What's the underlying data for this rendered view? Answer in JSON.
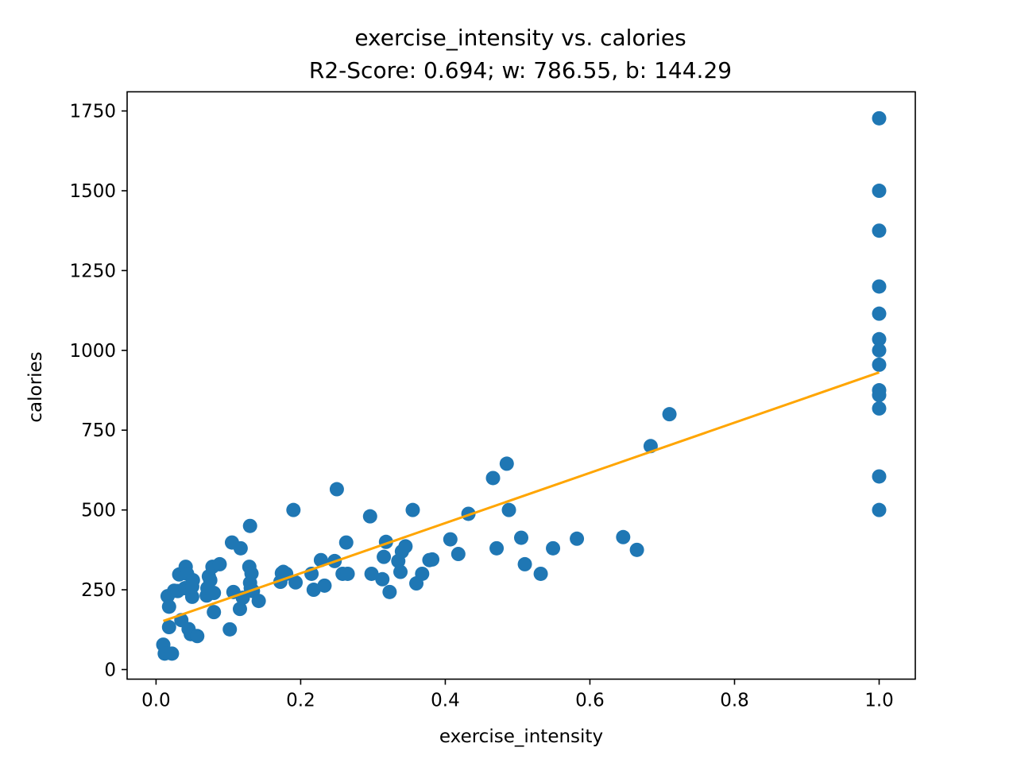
{
  "chart_data": {
    "type": "scatter",
    "title": "exercise_intensity vs. calories",
    "subtitle": "R2-Score: 0.694; w: 786.55, b: 144.29",
    "xlabel": "exercise_intensity",
    "ylabel": "calories",
    "xlim": [
      -0.04,
      1.05
    ],
    "ylim": [
      -30,
      1810
    ],
    "xticks": [
      0.0,
      0.2,
      0.4,
      0.6,
      0.8,
      1.0
    ],
    "xtick_labels": [
      "0.0",
      "0.2",
      "0.4",
      "0.6",
      "0.8",
      "1.0"
    ],
    "yticks": [
      0,
      250,
      500,
      750,
      1000,
      1250,
      1500,
      1750
    ],
    "ytick_labels": [
      "0",
      "250",
      "500",
      "750",
      "1000",
      "1250",
      "1500",
      "1750"
    ],
    "grid": false,
    "legend": "none",
    "colors": {
      "points": "#1f77b4",
      "fit_line": "#ffa500"
    },
    "series": [
      {
        "type": "scatter",
        "points": [
          [
            0.01,
            78
          ],
          [
            0.012,
            50
          ],
          [
            0.016,
            230
          ],
          [
            0.018,
            197
          ],
          [
            0.018,
            133
          ],
          [
            0.022,
            50
          ],
          [
            0.025,
            247
          ],
          [
            0.03,
            246
          ],
          [
            0.032,
            298
          ],
          [
            0.035,
            155
          ],
          [
            0.04,
            255
          ],
          [
            0.041,
            322
          ],
          [
            0.043,
            300
          ],
          [
            0.045,
            127
          ],
          [
            0.048,
            111
          ],
          [
            0.05,
            228
          ],
          [
            0.05,
            260
          ],
          [
            0.051,
            280
          ],
          [
            0.057,
            105
          ],
          [
            0.07,
            232
          ],
          [
            0.071,
            255
          ],
          [
            0.073,
            292
          ],
          [
            0.075,
            280
          ],
          [
            0.078,
            322
          ],
          [
            0.08,
            240
          ],
          [
            0.08,
            180
          ],
          [
            0.088,
            330
          ],
          [
            0.102,
            126
          ],
          [
            0.105,
            398
          ],
          [
            0.107,
            243
          ],
          [
            0.116,
            190
          ],
          [
            0.117,
            380
          ],
          [
            0.12,
            225
          ],
          [
            0.129,
            322
          ],
          [
            0.13,
            450
          ],
          [
            0.13,
            272
          ],
          [
            0.131,
            255
          ],
          [
            0.132,
            301
          ],
          [
            0.134,
            246
          ],
          [
            0.142,
            215
          ],
          [
            0.172,
            275
          ],
          [
            0.174,
            302
          ],
          [
            0.176,
            306
          ],
          [
            0.18,
            300
          ],
          [
            0.19,
            500
          ],
          [
            0.193,
            273
          ],
          [
            0.215,
            300
          ],
          [
            0.218,
            250
          ],
          [
            0.228,
            343
          ],
          [
            0.233,
            263
          ],
          [
            0.247,
            340
          ],
          [
            0.25,
            565
          ],
          [
            0.258,
            300
          ],
          [
            0.263,
            398
          ],
          [
            0.265,
            300
          ],
          [
            0.296,
            480
          ],
          [
            0.298,
            300
          ],
          [
            0.313,
            283
          ],
          [
            0.315,
            353
          ],
          [
            0.318,
            400
          ],
          [
            0.323,
            243
          ],
          [
            0.335,
            340
          ],
          [
            0.338,
            306
          ],
          [
            0.34,
            370
          ],
          [
            0.345,
            386
          ],
          [
            0.355,
            500
          ],
          [
            0.36,
            270
          ],
          [
            0.368,
            300
          ],
          [
            0.378,
            343
          ],
          [
            0.382,
            345
          ],
          [
            0.407,
            408
          ],
          [
            0.418,
            362
          ],
          [
            0.432,
            488
          ],
          [
            0.466,
            600
          ],
          [
            0.471,
            380
          ],
          [
            0.485,
            645
          ],
          [
            0.488,
            500
          ],
          [
            0.505,
            413
          ],
          [
            0.51,
            330
          ],
          [
            0.532,
            300
          ],
          [
            0.549,
            380
          ],
          [
            0.582,
            410
          ],
          [
            0.646,
            415
          ],
          [
            0.665,
            375
          ],
          [
            0.684,
            700
          ],
          [
            0.71,
            800
          ],
          [
            1.0,
            1727
          ],
          [
            1.0,
            1500
          ],
          [
            1.0,
            1375
          ],
          [
            1.0,
            1200
          ],
          [
            1.0,
            1115
          ],
          [
            1.0,
            1035
          ],
          [
            1.0,
            1000
          ],
          [
            1.0,
            955
          ],
          [
            1.0,
            875
          ],
          [
            1.0,
            860
          ],
          [
            1.0,
            818
          ],
          [
            1.0,
            605
          ],
          [
            1.0,
            500
          ]
        ]
      },
      {
        "type": "line",
        "w": 786.55,
        "b": 144.29,
        "x": [
          0.01,
          1.0
        ]
      }
    ]
  }
}
